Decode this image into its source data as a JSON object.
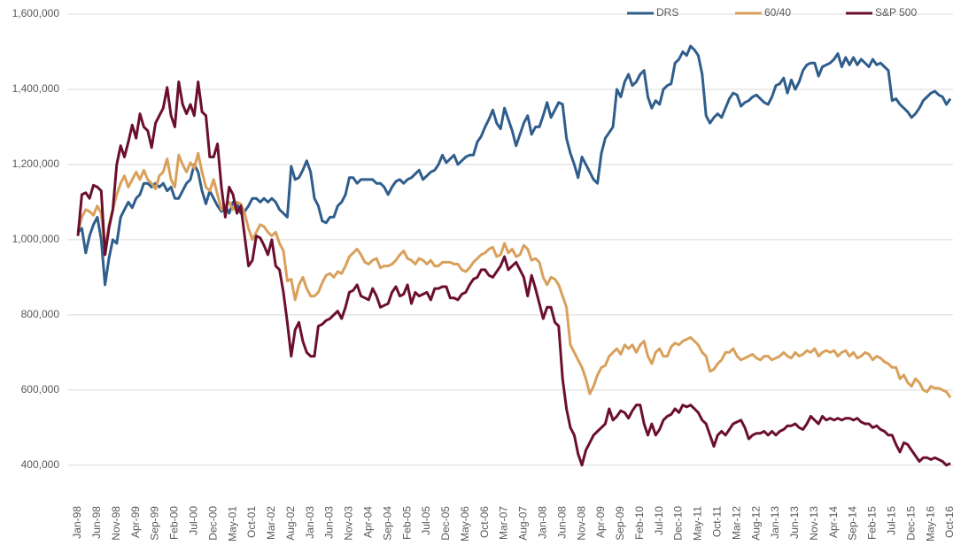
{
  "chart_data": {
    "type": "line",
    "categories": [
      "Jan-98",
      null,
      null,
      null,
      null,
      "Jun-98",
      null,
      null,
      null,
      null,
      "Nov-98",
      null,
      null,
      null,
      null,
      "Apr-99",
      null,
      null,
      null,
      null,
      "Sep-99",
      null,
      null,
      null,
      null,
      "Feb-00",
      null,
      null,
      null,
      null,
      "Jul-00",
      null,
      null,
      null,
      null,
      "Dec-00",
      null,
      null,
      null,
      null,
      "May-01",
      null,
      null,
      null,
      null,
      "Oct-01",
      null,
      null,
      null,
      null,
      "Mar-02",
      null,
      null,
      null,
      null,
      "Aug-02",
      null,
      null,
      null,
      null,
      "Jan-03",
      null,
      null,
      null,
      null,
      "Jun-03",
      null,
      null,
      null,
      null,
      "Nov-03",
      null,
      null,
      null,
      null,
      "Apr-04",
      null,
      null,
      null,
      null,
      "Sep-04",
      null,
      null,
      null,
      null,
      "Feb-05",
      null,
      null,
      null,
      null,
      "Jul-05",
      null,
      null,
      null,
      null,
      "Dec-05",
      null,
      null,
      null,
      null,
      "May-06",
      null,
      null,
      null,
      null,
      "Oct-06",
      null,
      null,
      null,
      null,
      "Mar-07",
      null,
      null,
      null,
      null,
      "Aug-07",
      null,
      null,
      null,
      null,
      "Jan-08",
      null,
      null,
      null,
      null,
      "Jun-08",
      null,
      null,
      null,
      null,
      "Nov-08",
      null,
      null,
      null,
      null,
      "Apr-09",
      null,
      null,
      null,
      null,
      "Sep-09",
      null,
      null,
      null,
      null,
      "Feb-10",
      null,
      null,
      null,
      null,
      "Jul-10",
      null,
      null,
      null,
      null,
      "Dec-10",
      null,
      null,
      null,
      null,
      "May-11",
      null,
      null,
      null,
      null,
      "Oct-11",
      null,
      null,
      null,
      null,
      "Mar-12",
      null,
      null,
      null,
      null,
      "Aug-12",
      null,
      null,
      null,
      null,
      "Jan-13",
      null,
      null,
      null,
      null,
      "Jun-13",
      null,
      null,
      null,
      null,
      "Nov-13",
      null,
      null,
      null,
      null,
      "Apr-14",
      null,
      null,
      null,
      null,
      "Sep-14",
      null,
      null,
      null,
      null,
      "Feb-15",
      null,
      null,
      null,
      null,
      "Jul-15",
      null,
      null,
      null,
      null,
      "Dec-15",
      null,
      null,
      null,
      null,
      "May-16",
      null,
      null,
      null,
      null,
      "Oct-16"
    ],
    "series": [
      {
        "name": "DRS",
        "color": "#2f5d8c",
        "values": [
          1020000,
          1030000,
          965000,
          1010000,
          1040000,
          1060000,
          1000000,
          880000,
          950000,
          1000000,
          990000,
          1060000,
          1080000,
          1100000,
          1085000,
          1110000,
          1120000,
          1150000,
          1150000,
          1140000,
          1150000,
          1140000,
          1150000,
          1130000,
          1140000,
          1110000,
          1110000,
          1130000,
          1150000,
          1160000,
          1200000,
          1180000,
          1130000,
          1095000,
          1130000,
          1110000,
          1090000,
          1075000,
          1090000,
          1070000,
          1100000,
          1095000,
          1070000,
          1075000,
          1090000,
          1110000,
          1110000,
          1100000,
          1110000,
          1100000,
          1110000,
          1100000,
          1080000,
          1070000,
          1060000,
          1195000,
          1160000,
          1165000,
          1185000,
          1210000,
          1180000,
          1110000,
          1090000,
          1050000,
          1045000,
          1060000,
          1060000,
          1090000,
          1100000,
          1120000,
          1165000,
          1165000,
          1150000,
          1160000,
          1160000,
          1160000,
          1160000,
          1150000,
          1150000,
          1140000,
          1120000,
          1140000,
          1155000,
          1160000,
          1150000,
          1160000,
          1165000,
          1175000,
          1185000,
          1160000,
          1170000,
          1180000,
          1185000,
          1200000,
          1225000,
          1205000,
          1215000,
          1225000,
          1200000,
          1210000,
          1220000,
          1225000,
          1225000,
          1260000,
          1275000,
          1300000,
          1320000,
          1345000,
          1310000,
          1295000,
          1350000,
          1320000,
          1290000,
          1250000,
          1280000,
          1310000,
          1330000,
          1280000,
          1300000,
          1300000,
          1330000,
          1365000,
          1325000,
          1345000,
          1365000,
          1360000,
          1270000,
          1230000,
          1200000,
          1165000,
          1220000,
          1200000,
          1180000,
          1160000,
          1150000,
          1230000,
          1270000,
          1285000,
          1300000,
          1400000,
          1380000,
          1420000,
          1440000,
          1410000,
          1420000,
          1440000,
          1450000,
          1380000,
          1350000,
          1370000,
          1360000,
          1400000,
          1410000,
          1415000,
          1470000,
          1480000,
          1500000,
          1490000,
          1515000,
          1505000,
          1490000,
          1440000,
          1330000,
          1310000,
          1325000,
          1335000,
          1325000,
          1350000,
          1375000,
          1390000,
          1385000,
          1355000,
          1365000,
          1370000,
          1380000,
          1385000,
          1375000,
          1365000,
          1360000,
          1380000,
          1410000,
          1415000,
          1430000,
          1390000,
          1425000,
          1400000,
          1420000,
          1450000,
          1465000,
          1470000,
          1470000,
          1435000,
          1460000,
          1465000,
          1470000,
          1480000,
          1495000,
          1460000,
          1485000,
          1465000,
          1485000,
          1465000,
          1480000,
          1470000,
          1460000,
          1480000,
          1465000,
          1470000,
          1460000,
          1450000,
          1370000,
          1375000,
          1360000,
          1350000,
          1340000,
          1325000,
          1335000,
          1350000,
          1370000,
          1380000,
          1390000,
          1395000,
          1385000,
          1380000,
          1360000,
          1375000
        ]
      },
      {
        "name": "60/40",
        "color": "#d9a05b",
        "values": [
          1020000,
          1060000,
          1080000,
          1075000,
          1065000,
          1090000,
          1070000,
          970000,
          1040000,
          1080000,
          1120000,
          1150000,
          1170000,
          1140000,
          1160000,
          1180000,
          1160000,
          1185000,
          1160000,
          1150000,
          1135000,
          1170000,
          1180000,
          1215000,
          1160000,
          1140000,
          1225000,
          1200000,
          1180000,
          1205000,
          1190000,
          1230000,
          1180000,
          1140000,
          1130000,
          1160000,
          1120000,
          1080000,
          1090000,
          1100000,
          1080000,
          1100000,
          1095000,
          1070000,
          1030000,
          1000000,
          1020000,
          1040000,
          1035000,
          1020000,
          1010000,
          1020000,
          990000,
          970000,
          890000,
          895000,
          840000,
          880000,
          900000,
          870000,
          850000,
          850000,
          860000,
          885000,
          905000,
          910000,
          900000,
          915000,
          910000,
          930000,
          955000,
          965000,
          975000,
          960000,
          940000,
          935000,
          945000,
          950000,
          925000,
          930000,
          930000,
          935000,
          945000,
          960000,
          970000,
          950000,
          945000,
          935000,
          950000,
          945000,
          935000,
          945000,
          930000,
          930000,
          940000,
          940000,
          940000,
          935000,
          935000,
          920000,
          915000,
          925000,
          940000,
          950000,
          960000,
          965000,
          975000,
          980000,
          955000,
          960000,
          990000,
          965000,
          975000,
          955000,
          960000,
          985000,
          975000,
          945000,
          950000,
          940000,
          900000,
          880000,
          900000,
          895000,
          880000,
          850000,
          820000,
          720000,
          700000,
          680000,
          660000,
          630000,
          590000,
          610000,
          640000,
          660000,
          665000,
          690000,
          700000,
          710000,
          695000,
          720000,
          710000,
          720000,
          700000,
          720000,
          730000,
          690000,
          670000,
          700000,
          710000,
          690000,
          690000,
          715000,
          725000,
          720000,
          730000,
          735000,
          740000,
          730000,
          720000,
          700000,
          690000,
          650000,
          655000,
          670000,
          680000,
          700000,
          700000,
          710000,
          690000,
          680000,
          685000,
          690000,
          695000,
          685000,
          680000,
          690000,
          690000,
          680000,
          685000,
          690000,
          700000,
          690000,
          685000,
          700000,
          690000,
          695000,
          705000,
          700000,
          710000,
          690000,
          700000,
          705000,
          700000,
          705000,
          690000,
          700000,
          705000,
          690000,
          700000,
          685000,
          690000,
          700000,
          695000,
          680000,
          690000,
          685000,
          675000,
          670000,
          660000,
          660000,
          630000,
          640000,
          620000,
          610000,
          630000,
          620000,
          600000,
          595000,
          610000,
          605000,
          605000,
          600000,
          595000,
          580000
        ]
      },
      {
        "name": "S&P 500",
        "color": "#6b0f2e",
        "values": [
          1010000,
          1120000,
          1125000,
          1110000,
          1145000,
          1140000,
          1130000,
          960000,
          1030000,
          1080000,
          1200000,
          1250000,
          1220000,
          1260000,
          1305000,
          1270000,
          1335000,
          1300000,
          1290000,
          1245000,
          1310000,
          1330000,
          1350000,
          1405000,
          1330000,
          1300000,
          1420000,
          1360000,
          1335000,
          1360000,
          1330000,
          1420000,
          1340000,
          1330000,
          1220000,
          1220000,
          1255000,
          1140000,
          1060000,
          1140000,
          1120000,
          1070000,
          1090000,
          1010000,
          930000,
          945000,
          1010000,
          1005000,
          985000,
          960000,
          1000000,
          930000,
          920000,
          860000,
          780000,
          690000,
          760000,
          780000,
          730000,
          700000,
          690000,
          690000,
          770000,
          775000,
          785000,
          790000,
          800000,
          810000,
          790000,
          820000,
          860000,
          865000,
          880000,
          850000,
          845000,
          840000,
          870000,
          850000,
          820000,
          825000,
          830000,
          860000,
          875000,
          850000,
          855000,
          880000,
          830000,
          860000,
          850000,
          855000,
          860000,
          840000,
          870000,
          870000,
          875000,
          875000,
          845000,
          845000,
          840000,
          855000,
          860000,
          880000,
          895000,
          900000,
          920000,
          920000,
          905000,
          900000,
          915000,
          930000,
          955000,
          920000,
          930000,
          940000,
          920000,
          900000,
          850000,
          905000,
          870000,
          830000,
          790000,
          820000,
          820000,
          780000,
          770000,
          630000,
          550000,
          500000,
          480000,
          430000,
          400000,
          440000,
          460000,
          480000,
          490000,
          500000,
          510000,
          550000,
          520000,
          530000,
          545000,
          540000,
          525000,
          545000,
          560000,
          560000,
          510000,
          480000,
          510000,
          480000,
          495000,
          520000,
          530000,
          535000,
          550000,
          540000,
          560000,
          555000,
          560000,
          550000,
          540000,
          520000,
          510000,
          480000,
          450000,
          480000,
          490000,
          480000,
          495000,
          510000,
          515000,
          520000,
          500000,
          470000,
          480000,
          485000,
          485000,
          490000,
          480000,
          490000,
          480000,
          490000,
          495000,
          505000,
          505000,
          510000,
          500000,
          495000,
          510000,
          530000,
          520000,
          510000,
          530000,
          520000,
          525000,
          520000,
          525000,
          520000,
          525000,
          525000,
          520000,
          525000,
          515000,
          510000,
          510000,
          500000,
          505000,
          495000,
          490000,
          480000,
          480000,
          455000,
          435000,
          460000,
          455000,
          440000,
          425000,
          410000,
          420000,
          420000,
          415000,
          420000,
          415000,
          410000,
          400000,
          405000
        ]
      }
    ],
    "ylim": [
      310000,
      1600000
    ],
    "yticks": [
      {
        "value": 400000,
        "label": "400,000"
      },
      {
        "value": 600000,
        "label": "600,000"
      },
      {
        "value": 800000,
        "label": "800,000"
      },
      {
        "value": 1000000,
        "label": "1,000,000"
      },
      {
        "value": 1200000,
        "label": "1,200,000"
      },
      {
        "value": 1400000,
        "label": "1,400,000"
      },
      {
        "value": 1600000,
        "label": "1,600,000"
      }
    ],
    "grid": true,
    "legend": "top-right"
  }
}
